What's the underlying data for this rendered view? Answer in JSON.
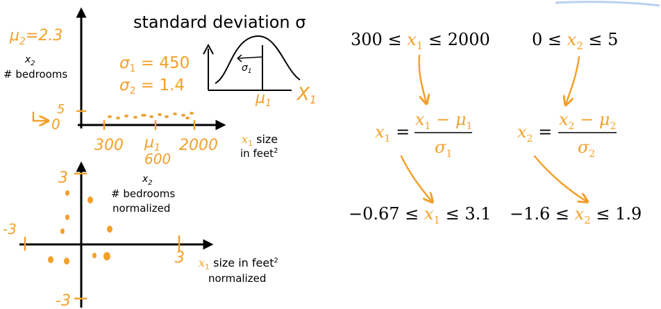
{
  "title": "standard deviation σ",
  "original_plot": {
    "mu2": [
      "μ",
      "2",
      "=2.3"
    ],
    "y_var": [
      "x",
      "2"
    ],
    "y_label": "# bedrooms",
    "y_max": "5",
    "y_min": "0",
    "x_ticks": [
      "300",
      "2000"
    ],
    "mu1": [
      "μ",
      "1"
    ],
    "mu1_value": "600",
    "x_label": [
      "x",
      "1",
      " size"
    ],
    "x_label_line2": [
      "in feet",
      "2"
    ]
  },
  "sigmas": [
    [
      "σ",
      "1",
      " = 450"
    ],
    [
      "σ",
      "2",
      " = 1.4"
    ]
  ],
  "bell_curve": {
    "sigma": [
      "σ",
      "1"
    ],
    "mu": [
      "μ",
      "1"
    ],
    "x": [
      "X",
      "1"
    ]
  },
  "ranges": [
    [
      "300 ≤ ",
      "x",
      "1",
      " ≤ 2000"
    ],
    [
      "0 ≤ ",
      "x",
      "2",
      " ≤ 5"
    ]
  ],
  "formulas": [
    {
      "lhs": [
        "x",
        "1",
        " ="
      ],
      "numerator": [
        "x",
        "1",
        " − ",
        "μ",
        "1"
      ],
      "denominator": [
        "σ",
        "1"
      ]
    },
    {
      "lhs": [
        "x",
        "2",
        " ="
      ],
      "numerator": [
        "x",
        "2",
        " − ",
        "μ",
        "2"
      ],
      "denominator": [
        "σ",
        "2"
      ]
    }
  ],
  "normalized_ranges": [
    [
      "−0.67 ≤ ",
      "x",
      "1",
      " ≤ 3.1"
    ],
    [
      "−1.6 ≤ ",
      "x",
      "2",
      " ≤ 1.9"
    ]
  ],
  "normalized_plot": {
    "y_max": "3",
    "y_min": "-3",
    "x_min": "-3",
    "x_max": "3",
    "y_var": [
      "x",
      "2"
    ],
    "y_label": [
      "# bedrooms",
      "normalized"
    ],
    "x_label": [
      "x",
      "1",
      " size in feet",
      "2"
    ],
    "x_label_line2": "normalized"
  }
}
